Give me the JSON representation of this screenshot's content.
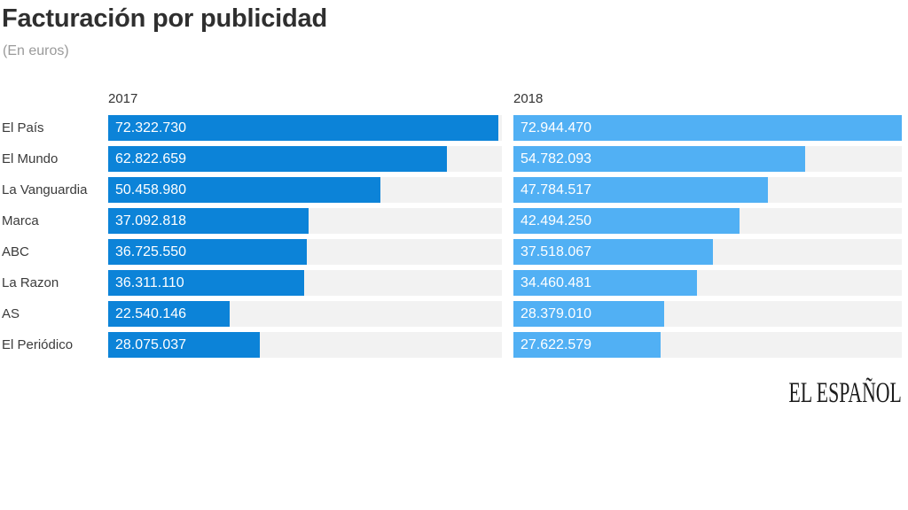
{
  "header": {
    "title": "Facturación por publicidad",
    "subtitle": "(En euros)"
  },
  "brand": {
    "logo_text": "EL ESPAÑOL"
  },
  "chart_data": {
    "type": "bar",
    "orientation": "horizontal",
    "title": "Facturación por publicidad",
    "subtitle": "(En euros)",
    "unit": "euros",
    "grid": false,
    "xmax": 72944470,
    "track_color": "#f2f2f2",
    "categories": [
      "El País",
      "El Mundo",
      "La Vanguardia",
      "Marca",
      "ABC",
      "La Razon",
      "AS",
      "El Periódico"
    ],
    "series": [
      {
        "name": "2017",
        "color": "#0c83d8",
        "values": [
          72322730,
          62822659,
          50458980,
          37092818,
          36725550,
          36311110,
          22540146,
          28075037
        ],
        "labels": [
          "72.322.730",
          "62.822.659",
          "50.458.980",
          "37.092.818",
          "36.725.550",
          "36.311.110",
          "22.540.146",
          "28.075.037"
        ]
      },
      {
        "name": "2018",
        "color": "#51b0f4",
        "values": [
          72944470,
          54782093,
          47784517,
          42494250,
          37518067,
          34460481,
          28379010,
          27622579
        ],
        "labels": [
          "72.944.470",
          "54.782.093",
          "47.784.517",
          "42.494.250",
          "37.518.067",
          "34.460.481",
          "28.379.010",
          "27.622.579"
        ]
      }
    ]
  }
}
